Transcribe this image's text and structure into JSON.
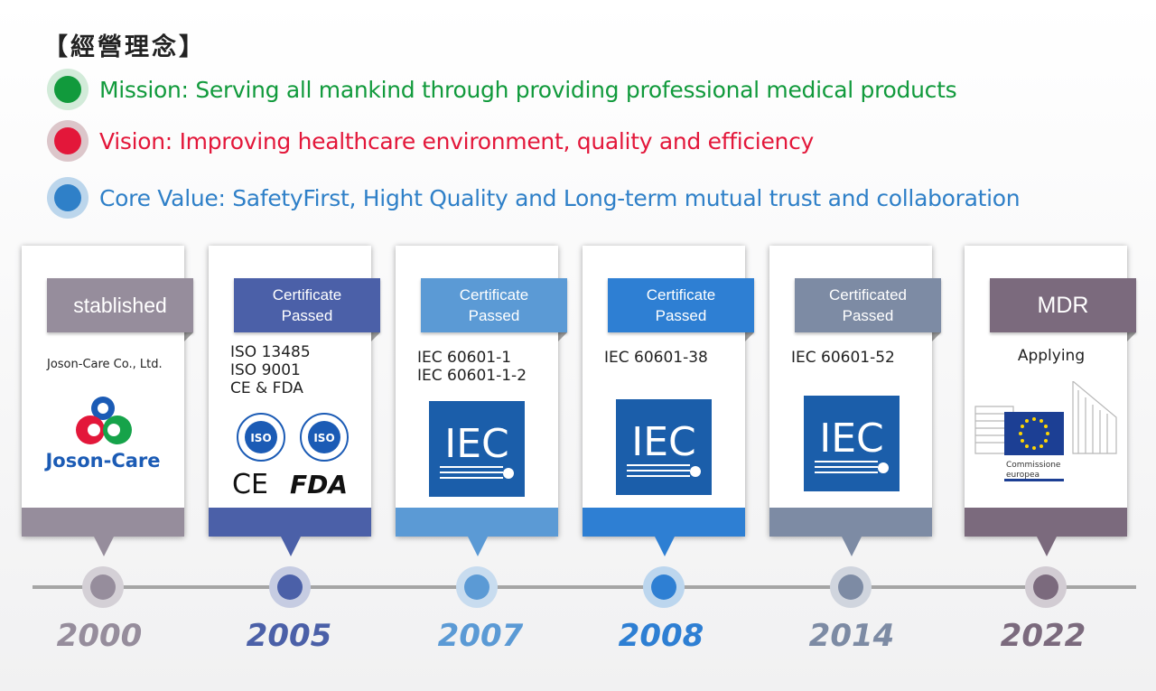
{
  "title": "【經營理念】",
  "statements": [
    {
      "text": "Mission: Serving all mankind through providing professional medical products",
      "color": "#119a3c",
      "ring": "#d2ebd9"
    },
    {
      "text": "Vision: Improving healthcare environment, quality and efficiency",
      "color": "#e3173a",
      "ring": "#dcc6ca"
    },
    {
      "text": "Core Value: SafetyFirst, Hight Quality and Long-term mutual trust and collaboration",
      "color": "#2f80c8",
      "ring": "#bcd6ec"
    }
  ],
  "milestones": [
    {
      "year": "2000",
      "label_lines": [
        "stablished"
      ],
      "details": [
        "Joson-Care Co., Ltd."
      ],
      "logo": "joson-care-logo",
      "color": "#968d9c"
    },
    {
      "year": "2005",
      "label_lines": [
        "Certificate",
        "Passed"
      ],
      "details": [
        "ISO 13485",
        "ISO  9001",
        "CE & FDA"
      ],
      "logo": "iso-ce-fda-logos",
      "color": "#4b60a8"
    },
    {
      "year": "2007",
      "label_lines": [
        "Certificate",
        "Passed"
      ],
      "details": [
        "IEC 60601-1",
        "IEC 60601-1-2"
      ],
      "logo": "iec-logo",
      "color": "#5b9ad5"
    },
    {
      "year": "2008",
      "label_lines": [
        "Certificate",
        "Passed"
      ],
      "details": [
        "IEC 60601-38"
      ],
      "logo": "iec-logo",
      "color": "#2e7fd3"
    },
    {
      "year": "2014",
      "label_lines": [
        "Certificated",
        "Passed"
      ],
      "details": [
        "IEC 60601-52"
      ],
      "logo": "iec-logo",
      "color": "#7d8ba4"
    },
    {
      "year": "2022",
      "label_lines": [
        "MDR"
      ],
      "details": [
        "Applying"
      ],
      "logo": "european-commission-logo",
      "color": "#7b6a7d"
    }
  ],
  "logo_text": {
    "joson": "Joson-Care",
    "iec": "IEC",
    "iso": "ISO",
    "ce": "CE",
    "fda": "FDA",
    "eu": [
      "Commissione",
      "europea"
    ]
  }
}
